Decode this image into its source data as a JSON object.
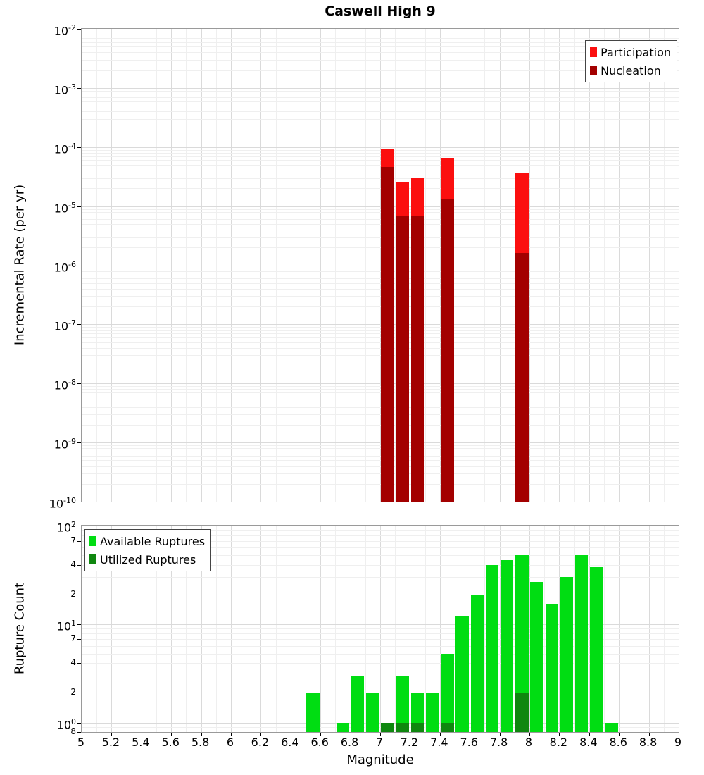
{
  "title": "Caswell High 9",
  "chart_data": [
    {
      "type": "bar",
      "panel": "incremental-rate",
      "title": "Caswell High 9",
      "ylabel": "Incremental Rate (per yr)",
      "xlim": [
        5,
        9
      ],
      "ylim": [
        1e-10,
        0.01
      ],
      "bin_width": 0.1,
      "grid": true,
      "legend_position": "top-right",
      "series": [
        {
          "name": "Participation",
          "color": "#fb0f0f",
          "x": [
            7.05,
            7.15,
            7.25,
            7.45,
            7.95
          ],
          "values": [
            9.5e-05,
            2.6e-05,
            3e-05,
            6.5e-05,
            3.6e-05
          ]
        },
        {
          "name": "Nucleation",
          "color": "#a30000",
          "x": [
            7.05,
            7.15,
            7.25,
            7.45,
            7.95
          ],
          "values": [
            4.6e-05,
            7e-06,
            7e-06,
            1.3e-05,
            1.6e-06
          ]
        }
      ],
      "y_ticks": [
        {
          "v": 0.01,
          "base": "10",
          "exp": "-2"
        },
        {
          "v": 0.001,
          "base": "10",
          "exp": "-3"
        },
        {
          "v": 0.0001,
          "base": "10",
          "exp": "-4"
        },
        {
          "v": 1e-05,
          "base": "10",
          "exp": "-5"
        },
        {
          "v": 1e-06,
          "base": "10",
          "exp": "-6"
        },
        {
          "v": 1e-07,
          "base": "10",
          "exp": "-7"
        },
        {
          "v": 1e-08,
          "base": "10",
          "exp": "-8"
        },
        {
          "v": 1e-09,
          "base": "10",
          "exp": "-9"
        },
        {
          "v": 1e-10,
          "base": "10",
          "exp": "-10"
        }
      ]
    },
    {
      "type": "bar",
      "panel": "rupture-count",
      "xlabel": "Magnitude",
      "ylabel": "Rupture Count",
      "xlim": [
        5,
        9
      ],
      "ylim": [
        0.8,
        100
      ],
      "bin_width": 0.1,
      "grid": true,
      "legend_position": "top-left",
      "series": [
        {
          "name": "Available Ruptures",
          "color": "#00dd12",
          "x": [
            6.55,
            6.75,
            6.85,
            6.95,
            7.05,
            7.15,
            7.25,
            7.35,
            7.45,
            7.55,
            7.65,
            7.75,
            7.85,
            7.95,
            8.05,
            8.15,
            8.25,
            8.35,
            8.45,
            8.55
          ],
          "values": [
            2,
            1,
            3,
            2,
            1,
            3,
            2,
            2,
            5,
            12,
            20,
            40,
            45,
            50,
            27,
            16,
            30,
            50,
            38,
            1
          ]
        },
        {
          "name": "Utilized Ruptures",
          "color": "#0f870f",
          "x": [
            7.05,
            7.15,
            7.25,
            7.45,
            7.95
          ],
          "values": [
            1,
            1,
            1,
            1,
            2
          ]
        }
      ],
      "y_ticks": [
        {
          "v": 100,
          "base": "10",
          "exp": "2"
        },
        {
          "v": 70,
          "text": "7"
        },
        {
          "v": 40,
          "text": "4"
        },
        {
          "v": 20,
          "text": "2"
        },
        {
          "v": 10,
          "base": "10",
          "exp": "1"
        },
        {
          "v": 7,
          "text": "7"
        },
        {
          "v": 4,
          "text": "4"
        },
        {
          "v": 2,
          "text": "2"
        },
        {
          "v": 1,
          "base": "10",
          "exp": "0"
        },
        {
          "v": 0.8,
          "text": "8"
        }
      ],
      "x_ticks": [
        {
          "v": 5,
          "text": "5"
        },
        {
          "v": 5.2,
          "text": "5.2"
        },
        {
          "v": 5.4,
          "text": "5.4"
        },
        {
          "v": 5.6,
          "text": "5.6"
        },
        {
          "v": 5.8,
          "text": "5.8"
        },
        {
          "v": 6,
          "text": "6"
        },
        {
          "v": 6.2,
          "text": "6.2"
        },
        {
          "v": 6.4,
          "text": "6.4"
        },
        {
          "v": 6.6,
          "text": "6.6"
        },
        {
          "v": 6.8,
          "text": "6.8"
        },
        {
          "v": 7,
          "text": "7"
        },
        {
          "v": 7.2,
          "text": "7.2"
        },
        {
          "v": 7.4,
          "text": "7.4"
        },
        {
          "v": 7.6,
          "text": "7.6"
        },
        {
          "v": 7.8,
          "text": "7.8"
        },
        {
          "v": 8,
          "text": "8"
        },
        {
          "v": 8.2,
          "text": "8.2"
        },
        {
          "v": 8.4,
          "text": "8.4"
        },
        {
          "v": 8.6,
          "text": "8.6"
        },
        {
          "v": 8.8,
          "text": "8.8"
        },
        {
          "v": 9,
          "text": "9"
        }
      ]
    }
  ]
}
